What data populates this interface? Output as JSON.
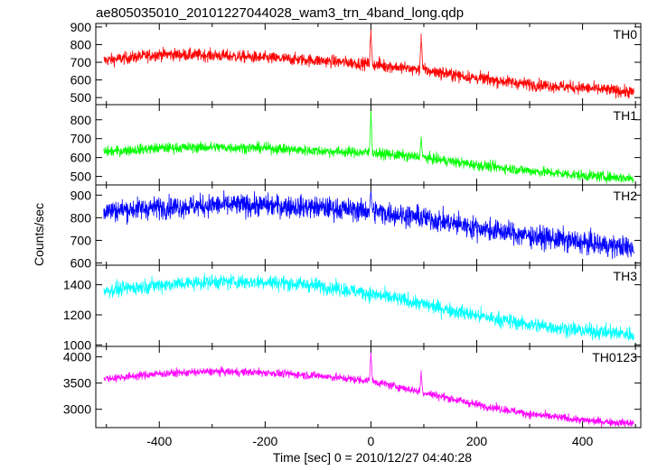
{
  "chart_data": {
    "type": "line",
    "title": "ae805035010_20101227044028_wam3_trn_4band_long.qdp",
    "xlabel": "Time [sec] 0 = 2010/12/27 04:40:28",
    "ylabel": "Counts/sec",
    "xlim": [
      -520,
      510
    ],
    "xticks": [
      -400,
      -200,
      0,
      200,
      400
    ],
    "x_range_data": [
      -505,
      497
    ],
    "panels": [
      {
        "name": "TH0",
        "color": "#ff0000",
        "ylim": [
          460,
          920
        ],
        "yticks": [
          500,
          600,
          700,
          800,
          900
        ],
        "trend_points": [
          [
            -505,
            710
          ],
          [
            -400,
            745
          ],
          [
            -300,
            740
          ],
          [
            -200,
            725
          ],
          [
            -100,
            710
          ],
          [
            0,
            690
          ],
          [
            100,
            655
          ],
          [
            200,
            610
          ],
          [
            300,
            575
          ],
          [
            400,
            555
          ],
          [
            497,
            530
          ]
        ],
        "noise_amplitude": 25,
        "flares": [
          {
            "x": 0,
            "peak": 915
          },
          {
            "x": 95,
            "peak": 890
          }
        ]
      },
      {
        "name": "TH1",
        "color": "#00ff00",
        "ylim": [
          455,
          880
        ],
        "yticks": [
          500,
          600,
          700,
          800
        ],
        "trend_points": [
          [
            -505,
            630
          ],
          [
            -400,
            650
          ],
          [
            -300,
            655
          ],
          [
            -200,
            650
          ],
          [
            -100,
            635
          ],
          [
            0,
            625
          ],
          [
            100,
            600
          ],
          [
            200,
            560
          ],
          [
            300,
            530
          ],
          [
            400,
            505
          ],
          [
            497,
            490
          ]
        ],
        "noise_amplitude": 20,
        "flares": [
          {
            "x": 0,
            "peak": 870
          },
          {
            "x": 95,
            "peak": 720
          }
        ]
      },
      {
        "name": "TH2",
        "color": "#0000ff",
        "ylim": [
          590,
          945
        ],
        "yticks": [
          600,
          700,
          800,
          900
        ],
        "trend_points": [
          [
            -505,
            830
          ],
          [
            -400,
            845
          ],
          [
            -300,
            855
          ],
          [
            -200,
            855
          ],
          [
            -100,
            845
          ],
          [
            0,
            830
          ],
          [
            100,
            800
          ],
          [
            200,
            755
          ],
          [
            300,
            720
          ],
          [
            400,
            690
          ],
          [
            497,
            665
          ]
        ],
        "noise_amplitude": 35,
        "flares": [
          {
            "x": 0,
            "peak": 925
          }
        ]
      },
      {
        "name": "TH3",
        "color": "#00ffff",
        "ylim": [
          990,
          1530
        ],
        "yticks": [
          1000,
          1200,
          1400
        ],
        "trend_points": [
          [
            -505,
            1360
          ],
          [
            -400,
            1400
          ],
          [
            -300,
            1420
          ],
          [
            -200,
            1420
          ],
          [
            -100,
            1395
          ],
          [
            0,
            1340
          ],
          [
            100,
            1270
          ],
          [
            200,
            1195
          ],
          [
            300,
            1135
          ],
          [
            400,
            1095
          ],
          [
            497,
            1070
          ]
        ],
        "noise_amplitude": 35,
        "flares": []
      },
      {
        "name": "TH0123",
        "color": "#ff00ff",
        "ylim": [
          2650,
          4200
        ],
        "yticks": [
          3000,
          3500,
          4000
        ],
        "trend_points": [
          [
            -505,
            3580
          ],
          [
            -400,
            3680
          ],
          [
            -300,
            3720
          ],
          [
            -200,
            3700
          ],
          [
            -100,
            3640
          ],
          [
            0,
            3540
          ],
          [
            100,
            3320
          ],
          [
            200,
            3090
          ],
          [
            300,
            2910
          ],
          [
            400,
            2790
          ],
          [
            497,
            2730
          ]
        ],
        "noise_amplitude": 55,
        "flares": [
          {
            "x": 0,
            "peak": 4150
          },
          {
            "x": 95,
            "peak": 3750
          }
        ]
      }
    ]
  }
}
